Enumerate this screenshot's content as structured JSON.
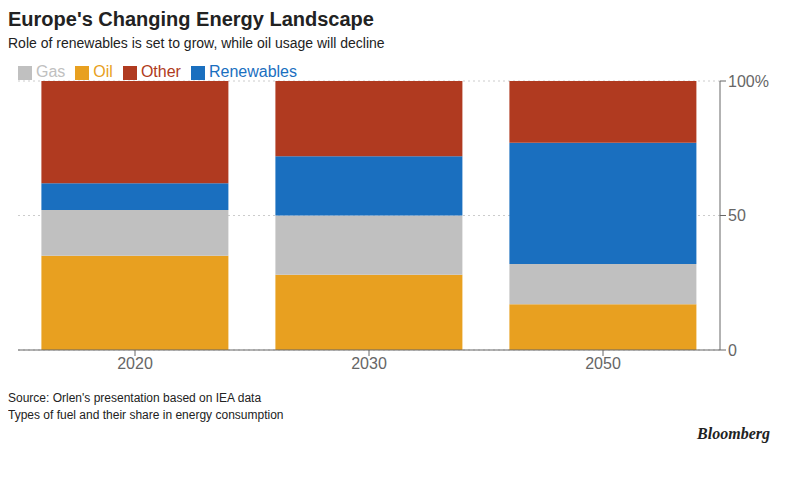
{
  "chart_data": {
    "type": "bar",
    "title": "Europe's Changing Energy Landscape",
    "subtitle": "Role of renewables is set to grow, while oil usage will decline",
    "annotations": [
      "Source: Orlen's presentation based on IEA data",
      "Types of fuel and their share in energy consumption",
      "Bloomberg"
    ],
    "categories": [
      "2020",
      "2030",
      "2050"
    ],
    "series": [
      {
        "name": "Oil",
        "color": "#E8A020",
        "values": [
          35,
          28,
          17
        ]
      },
      {
        "name": "Gas",
        "color": "#C0C0C0",
        "values": [
          17,
          22,
          15
        ]
      },
      {
        "name": "Renewables",
        "color": "#1A6FBF",
        "values": [
          10,
          22,
          45
        ]
      },
      {
        "name": "Other",
        "color": "#B03A20",
        "values": [
          38,
          28,
          23
        ]
      }
    ],
    "stacked": true,
    "ylim": [
      0,
      100
    ],
    "yticks": [
      0,
      50,
      {
        "value": 100,
        "label": "100%"
      }
    ],
    "grid": true,
    "legend": "upper left"
  }
}
